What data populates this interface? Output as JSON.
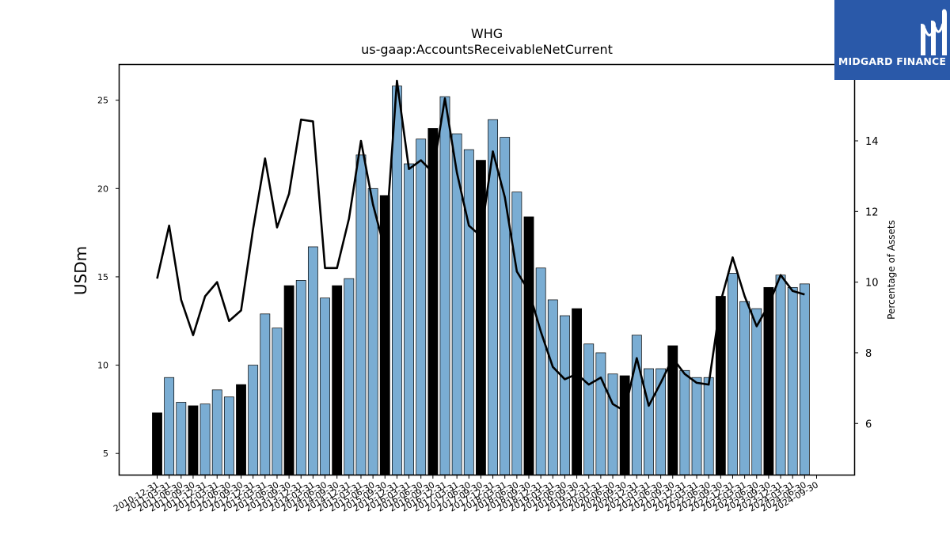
{
  "chart_data": {
    "type": "bar",
    "title": "WHG",
    "subtitle": "us-gaap:AccountsReceivableNetCurrent",
    "ylabel": "USDm",
    "y2label": "Percentage of Assets",
    "ylim": [
      3.8,
      27.0
    ],
    "y2lim": [
      4.55,
      16.15
    ],
    "yticks": [
      5,
      10,
      15,
      20,
      25
    ],
    "y2ticks": [
      6,
      8,
      10,
      12,
      14
    ],
    "grid": false,
    "legend": "none",
    "categories": [
      "2010-12-31",
      "2011-03-31",
      "2011-06-30",
      "2011-09-30",
      "2011-12-31",
      "2012-03-31",
      "2012-06-30",
      "2012-09-30",
      "2012-12-31",
      "2013-03-31",
      "2013-06-30",
      "2013-09-30",
      "2013-12-31",
      "2014-03-31",
      "2014-06-30",
      "2014-09-30",
      "2014-12-31",
      "2015-03-31",
      "2015-06-30",
      "2015-09-30",
      "2015-12-31",
      "2016-03-31",
      "2016-06-30",
      "2016-09-30",
      "2016-12-31",
      "2017-03-31",
      "2017-06-30",
      "2017-09-30",
      "2017-12-31",
      "2018-03-31",
      "2018-06-30",
      "2018-09-30",
      "2018-12-31",
      "2019-03-31",
      "2019-06-30",
      "2019-09-30",
      "2019-12-31",
      "2020-03-31",
      "2020-06-30",
      "2020-09-30",
      "2020-12-31",
      "2021-03-31",
      "2021-06-30",
      "2021-09-30",
      "2021-12-31",
      "2022-03-31",
      "2022-06-30",
      "2022-09-30",
      "2022-12-31",
      "2023-03-31",
      "2023-06-30",
      "2023-09-30",
      "2023-12-31",
      "2024-03-31",
      "2024-06-30",
      "2024-09-30"
    ],
    "series": [
      {
        "kind": "bar",
        "axis": "left",
        "values": [
          7.3,
          9.3,
          7.9,
          7.7,
          7.8,
          8.6,
          8.2,
          8.9,
          10.0,
          12.9,
          12.1,
          14.5,
          14.8,
          16.7,
          13.8,
          14.5,
          14.9,
          21.9,
          20.0,
          19.6,
          25.8,
          21.4,
          22.8,
          23.4,
          25.2,
          23.1,
          22.2,
          21.6,
          23.9,
          22.9,
          19.8,
          18.4,
          15.5,
          13.7,
          12.8,
          13.2,
          11.2,
          10.7,
          9.5,
          9.4,
          11.7,
          9.8,
          9.8,
          11.1,
          9.7,
          9.3,
          9.3,
          13.9,
          15.2,
          13.6,
          13.2,
          14.4,
          15.1,
          14.4,
          14.6,
          null
        ],
        "highlight_indices": [
          0,
          3,
          7,
          11,
          15,
          19,
          23,
          27,
          31,
          35,
          39,
          43,
          47,
          51
        ],
        "color": "#7aadd3",
        "highlight_color": "#000000"
      },
      {
        "kind": "line",
        "axis": "right",
        "color": "#000000",
        "values": [
          10.1,
          11.6,
          9.5,
          8.5,
          9.6,
          10.0,
          8.9,
          9.2,
          11.5,
          13.5,
          11.55,
          12.5,
          14.6,
          14.55,
          10.4,
          10.4,
          11.8,
          14.0,
          12.2,
          10.9,
          15.7,
          13.2,
          13.45,
          13.1,
          15.2,
          13.1,
          11.6,
          11.3,
          13.7,
          12.4,
          10.3,
          9.75,
          8.6,
          7.6,
          7.25,
          7.4,
          7.1,
          7.3,
          6.55,
          6.35,
          7.85,
          6.5,
          7.15,
          7.85,
          7.4,
          7.15,
          7.1,
          9.45,
          10.7,
          9.6,
          8.75,
          9.35,
          10.2,
          9.75,
          9.65,
          null
        ]
      }
    ]
  },
  "logo": {
    "brand": "MIDGARD FINANCE"
  }
}
